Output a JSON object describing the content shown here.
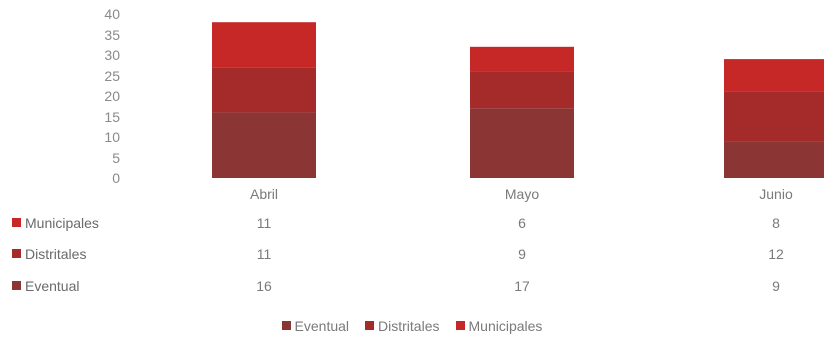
{
  "chart_data": {
    "type": "bar",
    "stacked": true,
    "categories": [
      "Abril",
      "Mayo",
      "Junio"
    ],
    "series": [
      {
        "name": "Eventual",
        "values": [
          16,
          17,
          9
        ],
        "color": "#8b3535"
      },
      {
        "name": "Distritales",
        "values": [
          11,
          9,
          12
        ],
        "color": "#a52a2a"
      },
      {
        "name": "Municipales",
        "values": [
          11,
          6,
          8
        ],
        "color": "#c62828"
      }
    ],
    "y_ticks": [
      "0",
      "5",
      "10",
      "15",
      "20",
      "25",
      "30",
      "35",
      "40"
    ],
    "ylim": [
      0,
      40
    ],
    "title": "",
    "xlabel": "",
    "ylabel": "",
    "grid": false,
    "legend_position": "bottom",
    "data_table": true,
    "data_table_rows": [
      {
        "name": "Municipales",
        "values": [
          "11",
          "6",
          "8"
        ]
      },
      {
        "name": "Distritales",
        "values": [
          "11",
          "9",
          "12"
        ]
      },
      {
        "name": "Eventual",
        "values": [
          "16",
          "17",
          "9"
        ]
      }
    ],
    "legend": [
      "Eventual",
      "Distritales",
      "Municipales"
    ]
  }
}
